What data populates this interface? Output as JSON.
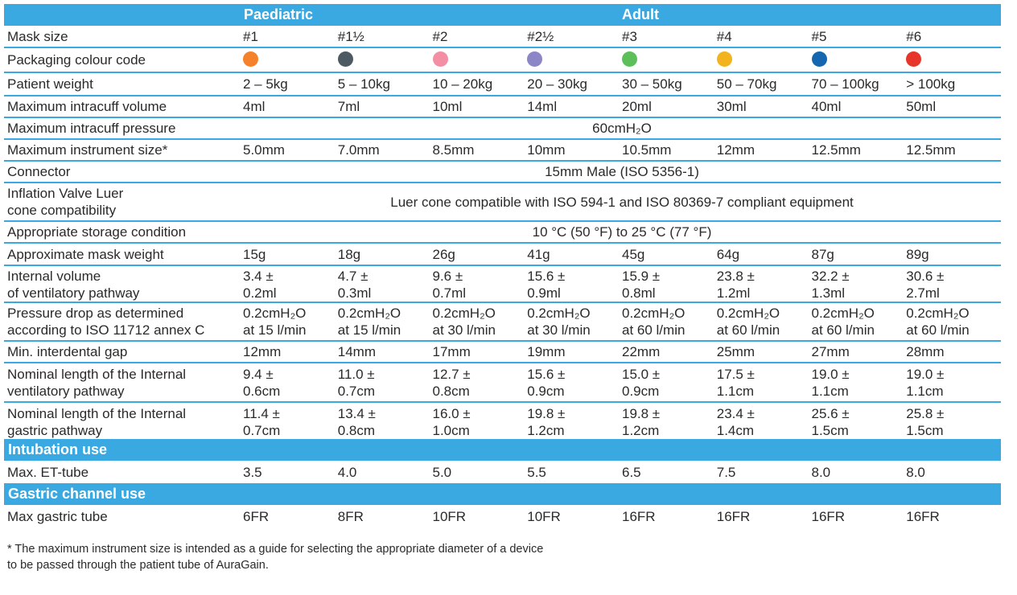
{
  "header": {
    "paediatric": "Paediatric",
    "adult": "Adult"
  },
  "sizes_label": "Mask size",
  "sizes": [
    "#1",
    "#1½",
    "#2",
    "#2½",
    "#3",
    "#4",
    "#5",
    "#6"
  ],
  "colour_row": {
    "label": "Packaging colour code",
    "colors": [
      "#f5822a",
      "#4e5a62",
      "#f48ea4",
      "#8c86c6",
      "#5cbf5a",
      "#f2b31e",
      "#1566b0",
      "#e8352a"
    ]
  },
  "rows_a": [
    {
      "label": "Patient weight",
      "values": [
        "2 – 5kg",
        "5 – 10kg",
        "10 – 20kg",
        "20 – 30kg",
        "30 – 50kg",
        "50 – 70kg",
        "70 – 100kg",
        "> 100kg"
      ]
    },
    {
      "label": "Maximum intracuff volume",
      "values": [
        "4ml",
        "7ml",
        "10ml",
        "14ml",
        "20ml",
        "30ml",
        "40ml",
        "50ml"
      ]
    }
  ],
  "pressure": {
    "label": "Maximum intracuff pressure",
    "value": "60cmH₂O"
  },
  "instrument": {
    "label": "Maximum instrument size*",
    "values": [
      "5.0mm",
      "7.0mm",
      "8.5mm",
      "10mm",
      "10.5mm",
      "12mm",
      "12.5mm",
      "12.5mm"
    ]
  },
  "connector": {
    "label": "Connector",
    "value": "15mm Male (ISO 5356-1)"
  },
  "inflation": {
    "label1": "Inflation Valve Luer",
    "label2": "cone compatibility",
    "value": "Luer cone compatible with ISO 594-1 and ISO 80369-7 compliant equipment"
  },
  "storage": {
    "label": "Appropriate storage condition",
    "value": "10 °C (50 °F) to 25 °C (77 °F)"
  },
  "weight": {
    "label": "Approximate mask weight",
    "values": [
      "15g",
      "18g",
      "26g",
      "41g",
      "45g",
      "64g",
      "87g",
      "89g"
    ]
  },
  "internal_volume": {
    "label1": "Internal volume",
    "label2": "of ventilatory pathway",
    "values": [
      [
        "3.4 ±",
        "0.2ml"
      ],
      [
        "4.7 ±",
        "0.3ml"
      ],
      [
        "9.6 ±",
        "0.7ml"
      ],
      [
        "15.6 ±",
        "0.9ml"
      ],
      [
        "15.9 ±",
        "0.8ml"
      ],
      [
        "23.8 ±",
        "1.2ml"
      ],
      [
        "32.2 ±",
        "1.3ml"
      ],
      [
        "30.6 ±",
        "2.7ml"
      ]
    ]
  },
  "pressure_drop": {
    "label1": "Pressure drop as determined",
    "label2": "according to ISO 11712 annex C",
    "values": [
      [
        "0.2cmH₂O",
        "at 15 l/min"
      ],
      [
        "0.2cmH₂O",
        "at 15 l/min"
      ],
      [
        "0.2cmH₂O",
        "at 30 l/min"
      ],
      [
        "0.2cmH₂O",
        "at 30 l/min"
      ],
      [
        "0.2cmH₂O",
        "at 60 l/min"
      ],
      [
        "0.2cmH₂O",
        "at 60 l/min"
      ],
      [
        "0.2cmH₂O",
        "at 60 l/min"
      ],
      [
        "0.2cmH₂O",
        "at 60 l/min"
      ]
    ]
  },
  "interdental": {
    "label": "Min. interdental gap",
    "values": [
      "12mm",
      "14mm",
      "17mm",
      "19mm",
      "22mm",
      "25mm",
      "27mm",
      "28mm"
    ]
  },
  "vent_length": {
    "label1": "Nominal length of the Internal",
    "label2": "ventilatory pathway",
    "values": [
      [
        "9.4 ±",
        "0.6cm"
      ],
      [
        "11.0 ±",
        "0.7cm"
      ],
      [
        "12.7 ±",
        "0.8cm"
      ],
      [
        "15.6 ±",
        "0.9cm"
      ],
      [
        "15.0 ±",
        "0.9cm"
      ],
      [
        "17.5 ±",
        "1.1cm"
      ],
      [
        "19.0 ±",
        "1.1cm"
      ],
      [
        "19.0 ±",
        "1.1cm"
      ]
    ]
  },
  "gastric_length": {
    "label1": "Nominal length of the Internal",
    "label2": "gastric pathway",
    "values": [
      [
        "11.4 ±",
        "0.7cm"
      ],
      [
        "13.4 ±",
        "0.8cm"
      ],
      [
        "16.0 ±",
        "1.0cm"
      ],
      [
        "19.8 ±",
        "1.2cm"
      ],
      [
        "19.8 ±",
        "1.2cm"
      ],
      [
        "23.4 ±",
        "1.4cm"
      ],
      [
        "25.6 ±",
        "1.5cm"
      ],
      [
        "25.8 ±",
        "1.5cm"
      ]
    ]
  },
  "intubation": {
    "title": "Intubation use",
    "label": "Max. ET-tube",
    "values": [
      "3.5",
      "4.0",
      "5.0",
      "5.5",
      "6.5",
      "7.5",
      "8.0",
      "8.0"
    ]
  },
  "gastric": {
    "title": "Gastric channel use",
    "label": "Max gastric tube",
    "values": [
      "6FR",
      "8FR",
      "10FR",
      "10FR",
      "16FR",
      "16FR",
      "16FR",
      "16FR"
    ]
  },
  "footnote": {
    "line1": "* The maximum instrument size is intended as a guide for selecting the appropriate diameter of a device",
    "line2": "to be passed through the patient tube of AuraGain."
  }
}
